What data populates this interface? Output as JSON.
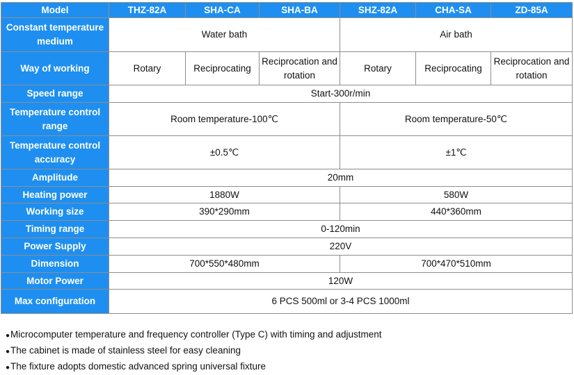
{
  "table": {
    "header": {
      "label": "Model",
      "models": [
        "THZ-82A",
        "SHA-CA",
        "SHA-BA",
        "SHZ-82A",
        "CHA-SA",
        "ZD-85A"
      ]
    },
    "medium": {
      "label": "Constant temperature medium",
      "water": "Water bath",
      "air": "Air bath"
    },
    "way": {
      "label": "Way of working",
      "values": [
        "Rotary",
        "Reciprocating",
        "Reciprocation and rotation",
        "Rotary",
        "Reciprocating",
        "Reciprocation and rotation"
      ]
    },
    "speed": {
      "label": "Speed range",
      "value": "Start-300r/min"
    },
    "temp_range": {
      "label": "Temperature control range",
      "water": "Room temperature-100℃",
      "air": "Room temperature-50℃"
    },
    "accuracy": {
      "label": "Temperature control accuracy",
      "water": "±0.5℃",
      "air": "±1℃"
    },
    "amplitude": {
      "label": "Amplitude",
      "value": "20mm"
    },
    "heating": {
      "label": "Heating power",
      "water": "1880W",
      "air": "580W"
    },
    "working_size": {
      "label": "Working size",
      "water": "390*290mm",
      "air": "440*360mm"
    },
    "timing": {
      "label": "Timing range",
      "value": "0-120min"
    },
    "power_supply": {
      "label": "Power Supply",
      "value": "220V"
    },
    "dimension": {
      "label": "Dimension",
      "water": "700*550*480mm",
      "air": "700*470*510mm"
    },
    "motor": {
      "label": "Motor Power",
      "value": "120W"
    },
    "max_config": {
      "label": "Max configuration",
      "value": "6 PCS 500ml or 3-4 PCS 1000ml"
    }
  },
  "notes": [
    "Microcomputer temperature and frequency controller (Type C) with timing and adjustment",
    "The cabinet is made of stainless steel for easy cleaning",
    "The fixture adopts domestic advanced spring universal fixture"
  ],
  "colors": {
    "header_blue": "#1e8ff0",
    "border": "#8d8d8d"
  }
}
